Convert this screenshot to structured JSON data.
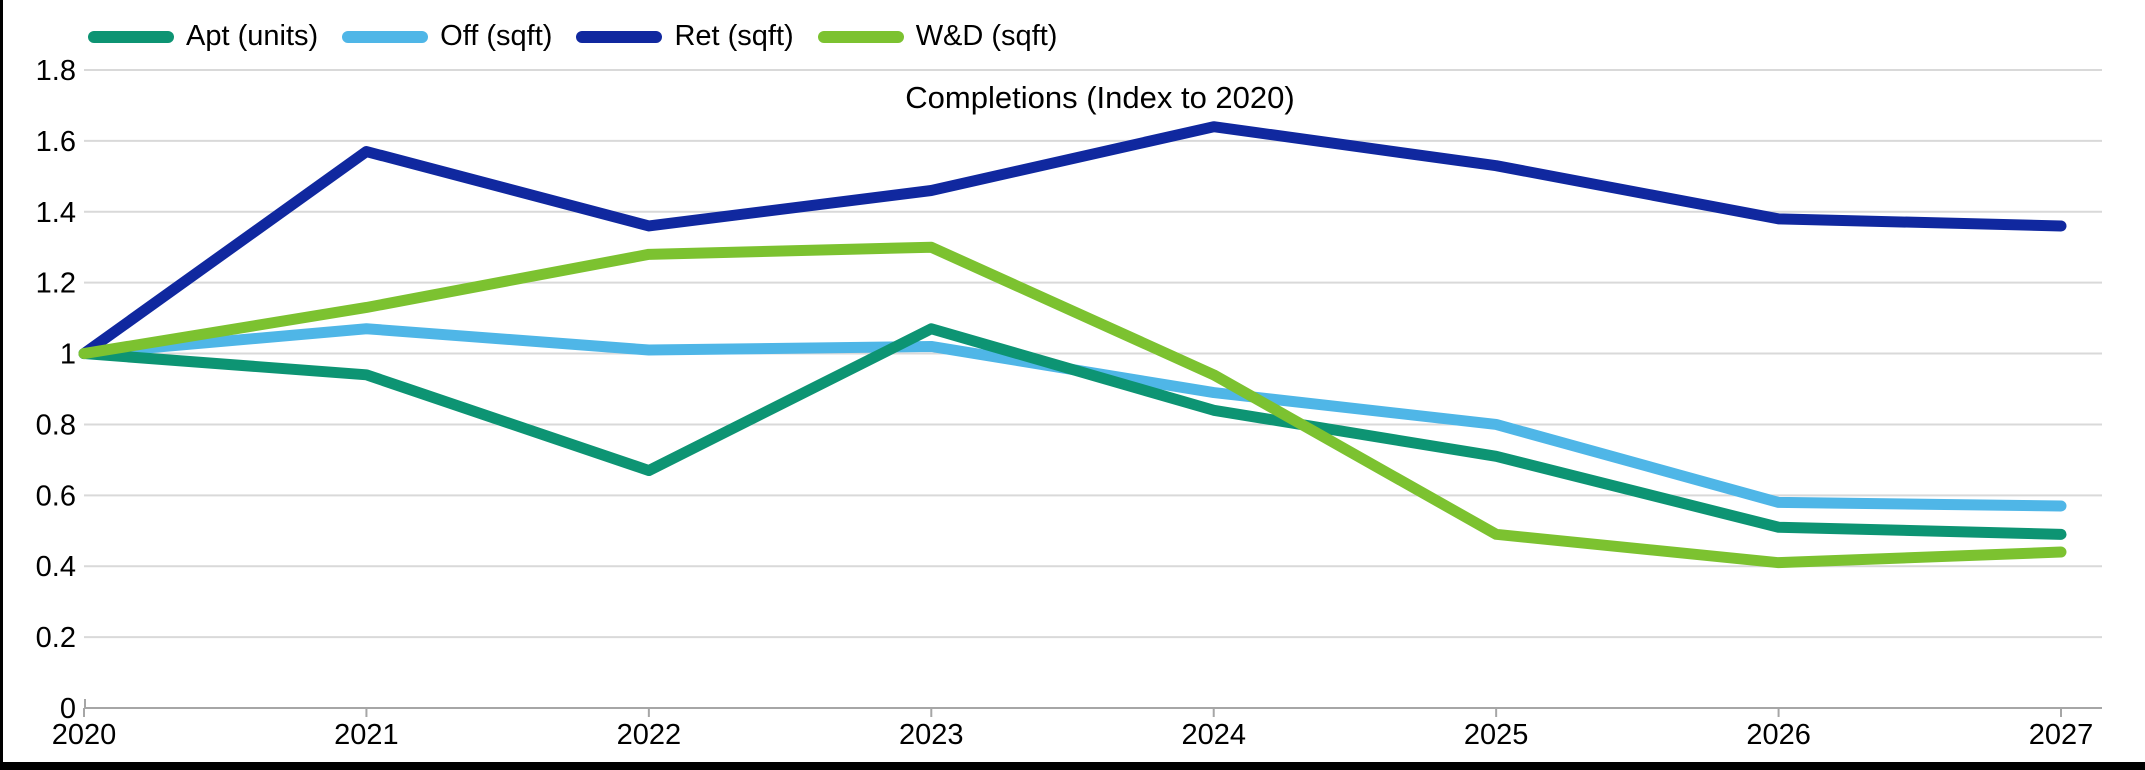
{
  "chart_data": {
    "type": "line",
    "title": "Completions (Index to 2020)",
    "x": [
      2020,
      2021,
      2022,
      2023,
      2024,
      2025,
      2026,
      2027
    ],
    "x_tick_labels": [
      "2020",
      "2021",
      "2022",
      "2023",
      "2024",
      "2025",
      "2026",
      "2027"
    ],
    "series": [
      {
        "name": "Apt (units)",
        "color": "#0D9473",
        "values": [
          1.0,
          0.94,
          0.67,
          1.07,
          0.84,
          0.71,
          0.51,
          0.49
        ]
      },
      {
        "name": "Off (sqft)",
        "color": "#4FB6E7",
        "values": [
          1.0,
          1.07,
          1.01,
          1.02,
          0.89,
          0.8,
          0.58,
          0.57
        ]
      },
      {
        "name": "Ret (sqft)",
        "color": "#10289F",
        "values": [
          1.0,
          1.57,
          1.36,
          1.46,
          1.64,
          1.53,
          1.38,
          1.36
        ]
      },
      {
        "name": "W&D (sqft)",
        "color": "#7CC230",
        "values": [
          1.0,
          1.13,
          1.28,
          1.3,
          0.94,
          0.49,
          0.41,
          0.44
        ]
      }
    ],
    "ylim": [
      0,
      1.8
    ],
    "y_ticks": [
      0,
      0.2,
      0.4,
      0.6,
      0.8,
      1,
      1.2,
      1.4,
      1.6,
      1.8
    ],
    "y_tick_labels": [
      "0",
      "0.2",
      "0.4",
      "0.6",
      "0.8",
      "1",
      "1.2",
      "1.4",
      "1.6",
      "1.8"
    ],
    "grid": true,
    "legend_position": "top-left",
    "legend_entries": [
      "Apt (units)",
      "Off (sqft)",
      "Ret (sqft)",
      "W&D (sqft)"
    ]
  },
  "colors": {
    "background": "#FFFFFF",
    "gridline": "#D9D9D9",
    "axis": "#A6A6A6",
    "text": "#000000",
    "window_border": "#000000"
  }
}
